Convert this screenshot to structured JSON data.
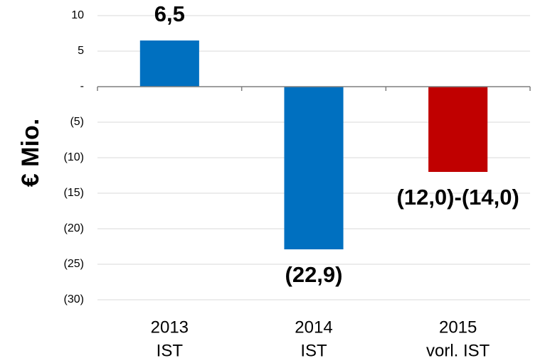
{
  "chart_data": {
    "type": "bar",
    "y_axis_label": "€ Mio.",
    "categories": [
      [
        "2013",
        "IST"
      ],
      [
        "2014",
        "IST"
      ],
      [
        "2015",
        "vorl. IST"
      ]
    ],
    "values": [
      6.5,
      -22.9,
      -12.0
    ],
    "value_labels": [
      "6,5",
      "(22,9)",
      "(12,0)-(14,0)"
    ],
    "colors": [
      "#0070c0",
      "#0070c0",
      "#c00000"
    ],
    "ylim": [
      -30,
      10
    ],
    "yticks": [
      10,
      5,
      {
        "value": 0,
        "label": "-"
      },
      {
        "value": -5,
        "label": "(5)"
      },
      {
        "value": -10,
        "label": "(10)"
      },
      {
        "value": -15,
        "label": "(15)"
      },
      {
        "value": -20,
        "label": "(20)"
      },
      {
        "value": -25,
        "label": "(25)"
      },
      {
        "value": -30,
        "label": "(30)"
      }
    ],
    "grid": true
  }
}
